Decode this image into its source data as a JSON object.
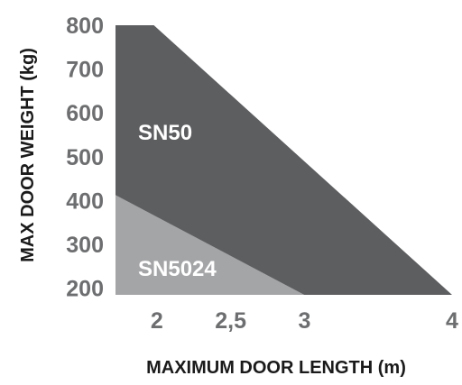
{
  "chart_data": {
    "type": "area",
    "xlabel": "MAXIMUM DOOR LENGTH (m)",
    "ylabel": "MAX DOOR WEIGHT (kg)",
    "x_ticks": [
      {
        "value": 2,
        "label": "2"
      },
      {
        "value": 2.5,
        "label": "2,5"
      },
      {
        "value": 3,
        "label": "3"
      },
      {
        "value": 4,
        "label": "4"
      }
    ],
    "y_ticks": [
      {
        "value": 200,
        "label": "200"
      },
      {
        "value": 300,
        "label": "300"
      },
      {
        "value": 400,
        "label": "400"
      },
      {
        "value": 500,
        "label": "500"
      },
      {
        "value": 600,
        "label": "600"
      },
      {
        "value": 700,
        "label": "700"
      },
      {
        "value": 800,
        "label": "800"
      }
    ],
    "xlim": [
      1.72,
      4.0
    ],
    "ylim": [
      185,
      800
    ],
    "grid": false,
    "series": [
      {
        "name": "SN50",
        "color": "#5d5e60",
        "x": [
          1.72,
          1.98,
          4.0
        ],
        "y": [
          800,
          800,
          185
        ]
      },
      {
        "name": "SN5024",
        "color": "#a4a5a7",
        "x": [
          1.72,
          3.0
        ],
        "y": [
          413,
          185
        ]
      }
    ]
  }
}
